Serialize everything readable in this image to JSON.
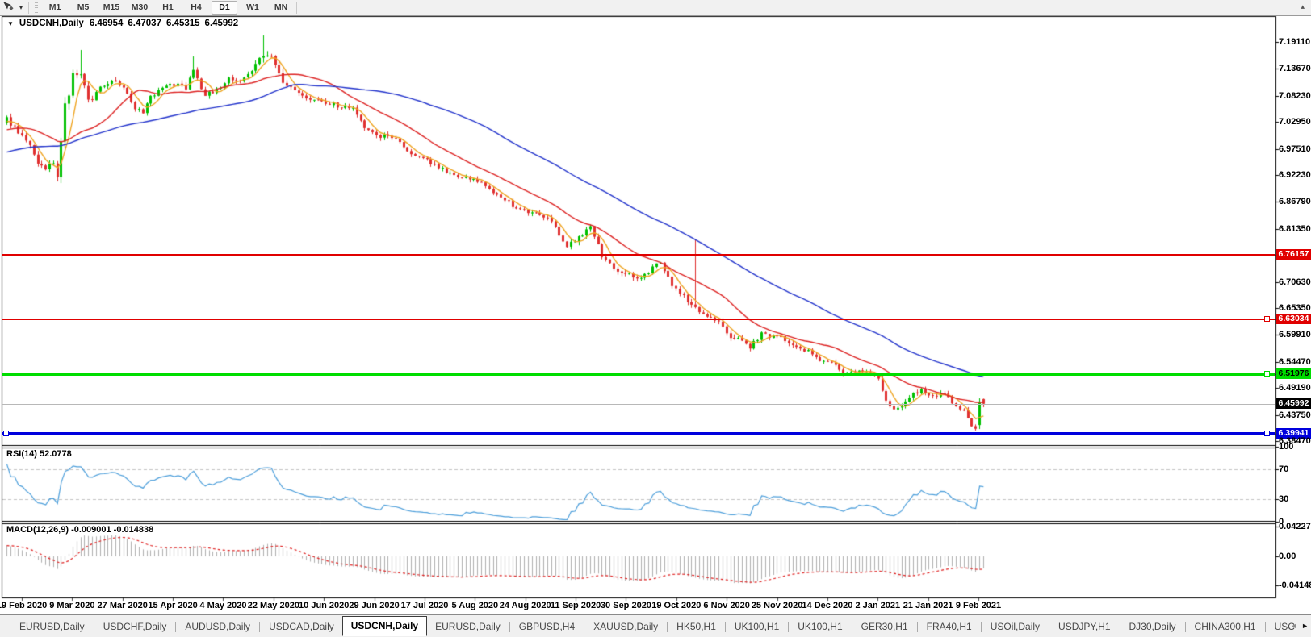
{
  "toolbar": {
    "caret": "▾",
    "overflow_arrow": "▴",
    "timeframes": [
      {
        "label": "M1",
        "active": false
      },
      {
        "label": "M5",
        "active": false
      },
      {
        "label": "M15",
        "active": false
      },
      {
        "label": "M30",
        "active": false
      },
      {
        "label": "H1",
        "active": false
      },
      {
        "label": "H4",
        "active": false
      },
      {
        "label": "D1",
        "active": true
      },
      {
        "label": "W1",
        "active": false
      },
      {
        "label": "MN",
        "active": false
      }
    ]
  },
  "chart_header": {
    "caret": "▼",
    "symbol_period": "USDCNH,Daily",
    "open": "6.46954",
    "high": "6.47037",
    "low": "6.45315",
    "close": "6.45992"
  },
  "chart_data": {
    "type": "candlestick",
    "symbol": "USDCNH",
    "period": "Daily",
    "candle_count": 252,
    "ylim": [
      6.3765,
      7.2434
    ],
    "candle_colors": {
      "bull": "#00c000",
      "bear": "#e03030"
    },
    "price_axis_ticks": [
      "7.19110",
      "7.13670",
      "7.08230",
      "7.02950",
      "6.97510",
      "6.92230",
      "6.86790",
      "6.81350",
      "6.70630",
      "6.65350",
      "6.59910",
      "6.54470",
      "6.49190",
      "6.43750",
      "6.38470"
    ],
    "date_ticks": [
      "19 Feb 2020",
      "9 Mar 2020",
      "27 Mar 2020",
      "15 Apr 2020",
      "4 May 2020",
      "22 May 2020",
      "10 Jun 2020",
      "29 Jun 2020",
      "17 Jul 2020",
      "5 Aug 2020",
      "24 Aug 2020",
      "11 Sep 2020",
      "30 Sep 2020",
      "19 Oct 2020",
      "6 Nov 2020",
      "25 Nov 2020",
      "14 Dec 2020",
      "2 Jan 2021",
      "21 Jan 2021",
      "9 Feb 2021"
    ],
    "levels": [
      {
        "label": "6.76157",
        "value": 6.76157,
        "color": "#e00000",
        "thickness": 2,
        "text_color": "#ffffff",
        "handles": []
      },
      {
        "label": "6.63034",
        "value": 6.63034,
        "color": "#e00000",
        "thickness": 2,
        "text_color": "#ffffff",
        "handles": [
          "right"
        ]
      },
      {
        "label": "6.51976",
        "value": 6.51976,
        "color": "#00dd00",
        "thickness": 3,
        "text_color": "#000000",
        "handles": [
          "right"
        ]
      },
      {
        "label": "6.39941",
        "value": 6.39941,
        "color": "#0000dd",
        "thickness": 4,
        "text_color": "#ffffff",
        "handles": [
          "left",
          "right"
        ]
      }
    ],
    "current_price": {
      "label": "6.45992",
      "value": 6.45992,
      "line_color": "#b8b8b8",
      "label_bg": "#000000",
      "text_color": "#ffffff"
    },
    "moving_averages": [
      {
        "name": "fast",
        "period": 5,
        "color": "#efa420"
      },
      {
        "name": "mid",
        "period": 20,
        "color": "#dd2222"
      },
      {
        "name": "slow",
        "period": 60,
        "color": "#2233cc"
      }
    ],
    "indicators": {
      "rsi": {
        "label": "RSI(14) 52.0778",
        "period": 14,
        "value": "52.0778",
        "color": "#4d9fdb",
        "level_lines": [
          70,
          30
        ],
        "axis_ticks": [
          "100",
          "70",
          "30",
          "0"
        ],
        "axis_values": [
          100,
          70,
          30,
          0
        ]
      },
      "macd": {
        "label": "MACD(12,26,9) -0.009001 -0.014838",
        "params": "12,26,9",
        "macd_value": "-0.009001",
        "signal_value": "-0.014838",
        "histogram_color": "#b0b0b0",
        "signal_color": "#e02020",
        "axis_ticks": [
          "0.042275",
          "0.00",
          "-0.04148"
        ],
        "axis_values": [
          0.042275,
          0.0,
          -0.04148
        ]
      }
    },
    "close_path_anchors": [
      [
        0,
        7.035,
        0.016
      ],
      [
        3,
        7.01,
        0.014
      ],
      [
        5,
        6.995,
        0.013
      ],
      [
        8,
        6.945,
        0.015
      ],
      [
        10,
        6.93,
        0.013
      ],
      [
        12,
        6.95,
        0.013
      ],
      [
        13,
        6.925,
        0.02
      ],
      [
        15,
        7.06,
        0.03
      ],
      [
        17,
        7.12,
        0.026
      ],
      [
        19,
        7.13,
        0.026
      ],
      [
        21,
        7.07,
        0.02
      ],
      [
        24,
        7.1,
        0.015
      ],
      [
        27,
        7.115,
        0.013
      ],
      [
        30,
        7.1,
        0.012
      ],
      [
        33,
        7.06,
        0.012
      ],
      [
        35,
        7.045,
        0.011
      ],
      [
        37,
        7.08,
        0.012
      ],
      [
        40,
        7.095,
        0.011
      ],
      [
        43,
        7.105,
        0.012
      ],
      [
        46,
        7.1,
        0.014
      ],
      [
        48,
        7.13,
        0.016
      ],
      [
        51,
        7.085,
        0.012
      ],
      [
        54,
        7.095,
        0.012
      ],
      [
        57,
        7.115,
        0.012
      ],
      [
        60,
        7.11,
        0.012
      ],
      [
        63,
        7.13,
        0.012
      ],
      [
        65,
        7.16,
        0.018
      ],
      [
        67,
        7.17,
        0.02
      ],
      [
        69,
        7.15,
        0.018
      ],
      [
        71,
        7.105,
        0.016
      ],
      [
        74,
        7.09,
        0.013
      ],
      [
        77,
        7.078,
        0.012
      ],
      [
        81,
        7.07,
        0.011
      ],
      [
        85,
        7.063,
        0.011
      ],
      [
        89,
        7.055,
        0.012
      ],
      [
        92,
        7.02,
        0.013
      ],
      [
        95,
        7.0,
        0.012
      ],
      [
        98,
        7.005,
        0.011
      ],
      [
        101,
        6.985,
        0.011
      ],
      [
        104,
        6.968,
        0.011
      ],
      [
        107,
        6.958,
        0.011
      ],
      [
        111,
        6.935,
        0.012
      ],
      [
        114,
        6.93,
        0.012
      ],
      [
        117,
        6.918,
        0.012
      ],
      [
        121,
        6.912,
        0.011
      ],
      [
        125,
        6.888,
        0.011
      ],
      [
        128,
        6.872,
        0.011
      ],
      [
        132,
        6.85,
        0.011
      ],
      [
        135,
        6.845,
        0.011
      ],
      [
        138,
        6.84,
        0.011
      ],
      [
        141,
        6.82,
        0.012
      ],
      [
        144,
        6.775,
        0.015
      ],
      [
        147,
        6.8,
        0.015
      ],
      [
        150,
        6.815,
        0.013
      ],
      [
        153,
        6.76,
        0.014
      ],
      [
        156,
        6.732,
        0.012
      ],
      [
        160,
        6.72,
        0.012
      ],
      [
        163,
        6.71,
        0.013
      ],
      [
        166,
        6.735,
        0.012
      ],
      [
        168,
        6.745,
        0.012
      ],
      [
        171,
        6.7,
        0.013
      ],
      [
        175,
        6.668,
        0.012
      ],
      [
        177,
        6.655,
        0.014
      ],
      [
        180,
        6.64,
        0.012
      ],
      [
        183,
        6.625,
        0.013
      ],
      [
        185,
        6.6,
        0.013
      ],
      [
        188,
        6.59,
        0.013
      ],
      [
        191,
        6.576,
        0.012
      ],
      [
        194,
        6.6,
        0.011
      ],
      [
        197,
        6.596,
        0.011
      ],
      [
        200,
        6.59,
        0.011
      ],
      [
        204,
        6.575,
        0.011
      ],
      [
        207,
        6.56,
        0.011
      ],
      [
        210,
        6.545,
        0.011
      ],
      [
        213,
        6.536,
        0.011
      ],
      [
        216,
        6.52,
        0.011
      ],
      [
        219,
        6.53,
        0.011
      ],
      [
        222,
        6.525,
        0.011
      ],
      [
        224,
        6.512,
        0.012
      ],
      [
        226,
        6.47,
        0.015
      ],
      [
        228,
        6.445,
        0.013
      ],
      [
        230,
        6.458,
        0.012
      ],
      [
        232,
        6.475,
        0.012
      ],
      [
        235,
        6.486,
        0.011
      ],
      [
        238,
        6.475,
        0.011
      ],
      [
        241,
        6.48,
        0.011
      ],
      [
        243,
        6.465,
        0.011
      ],
      [
        246,
        6.442,
        0.012
      ],
      [
        248,
        6.418,
        0.012
      ],
      [
        249,
        6.412,
        0.012
      ],
      [
        250,
        6.462,
        0.014
      ],
      [
        251,
        6.4599,
        0.01
      ]
    ],
    "spikes": [
      [
        19,
        7.175
      ],
      [
        48,
        7.162
      ],
      [
        66,
        7.2045
      ],
      [
        177,
        6.792
      ]
    ],
    "final_candles": [
      {
        "o": 6.417,
        "h": 6.471,
        "l": 6.409,
        "c": 6.462
      },
      {
        "o": 6.46954,
        "h": 6.47037,
        "l": 6.45315,
        "c": 6.45992
      }
    ]
  },
  "tabs": {
    "left_arrow": "◄",
    "right_arrow": "►",
    "items": [
      {
        "label": "EURUSD,Daily",
        "active": false
      },
      {
        "label": "USDCHF,Daily",
        "active": false
      },
      {
        "label": "AUDUSD,Daily",
        "active": false
      },
      {
        "label": "USDCAD,Daily",
        "active": false
      },
      {
        "label": "USDCNH,Daily",
        "active": true
      },
      {
        "label": "EURUSD,Daily",
        "active": false
      },
      {
        "label": "GBPUSD,H4",
        "active": false
      },
      {
        "label": "XAUUSD,Daily",
        "active": false
      },
      {
        "label": "HK50,H1",
        "active": false
      },
      {
        "label": "UK100,H1",
        "active": false
      },
      {
        "label": "UK100,H1",
        "active": false
      },
      {
        "label": "GER30,H1",
        "active": false
      },
      {
        "label": "FRA40,H1",
        "active": false
      },
      {
        "label": "USOil,Daily",
        "active": false
      },
      {
        "label": "USDJPY,H1",
        "active": false
      },
      {
        "label": "DJ30,Daily",
        "active": false
      },
      {
        "label": "CHINA300,H1",
        "active": false
      },
      {
        "label": "USC",
        "active": false
      }
    ]
  }
}
